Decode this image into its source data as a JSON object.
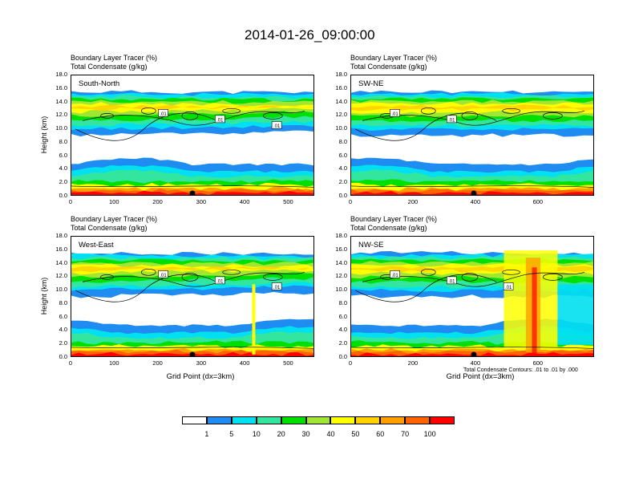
{
  "figure": {
    "title": "2014-01-26_09:00:00",
    "note": "Total Condensate Contours: .01 to .01 by .000"
  },
  "colorbar": {
    "colors": [
      "#ffffff",
      "#1e8cf0",
      "#00e0f0",
      "#32e6a0",
      "#00e000",
      "#a0e632",
      "#ffff00",
      "#ffd200",
      "#ffa000",
      "#ff6400",
      "#ff0000"
    ],
    "labels": [
      "1",
      "5",
      "10",
      "20",
      "30",
      "40",
      "50",
      "60",
      "70",
      "100"
    ]
  },
  "chart_data": [
    {
      "type": "heatmap",
      "region": "South-North",
      "title_line1": "Boundary Layer Tracer   (%)",
      "title_line2": "Total Condensate   (g/kg)",
      "ylabel": "Height (km)",
      "xlabel": "",
      "xlim": [
        0,
        560
      ],
      "ylim": [
        0,
        18
      ],
      "xticks": [
        "0",
        "100",
        "200",
        "300",
        "400",
        "500"
      ],
      "yticks": [
        "0.0",
        "2.0",
        "4.0",
        "6.0",
        "8.0",
        "10.0",
        "12.0",
        "14.0",
        "16.0",
        "18.0"
      ],
      "contour_labels": [
        ".01",
        ".01",
        ".01"
      ],
      "marker_x": 280
    },
    {
      "type": "heatmap",
      "region": "SW-NE",
      "title_line1": "Boundary Layer Tracer   (%)",
      "title_line2": "Total Condensate   (g/kg)",
      "ylabel": "",
      "xlabel": "",
      "xlim": [
        0,
        780
      ],
      "ylim": [
        0,
        18
      ],
      "xticks": [
        "0",
        "200",
        "400",
        "600"
      ],
      "yticks": [
        "0.0",
        "2.0",
        "4.0",
        "6.0",
        "8.0",
        "10.0",
        "12.0",
        "14.0",
        "16.0",
        "18.0"
      ],
      "contour_labels": [
        ".01",
        ".01"
      ],
      "marker_x": 395
    },
    {
      "type": "heatmap",
      "region": "West-East",
      "title_line1": "Boundary Layer Tracer   (%)",
      "title_line2": "Total Condensate   (g/kg)",
      "ylabel": "Height (km)",
      "xlabel": "Grid Point (dx=3km)",
      "xlim": [
        0,
        560
      ],
      "ylim": [
        0,
        18
      ],
      "xticks": [
        "0",
        "100",
        "200",
        "300",
        "400",
        "500"
      ],
      "yticks": [
        "0.0",
        "2.0",
        "4.0",
        "6.0",
        "8.0",
        "10.0",
        "12.0",
        "14.0",
        "16.0",
        "18.0"
      ],
      "contour_labels": [
        ".01",
        ".01",
        ".01"
      ],
      "marker_x": 280
    },
    {
      "type": "heatmap",
      "region": "NW-SE",
      "title_line1": "Boundary Layer Tracer   (%)",
      "title_line2": "Total Condensate   (g/kg)",
      "ylabel": "",
      "xlabel": "Grid Point (dx=3km)",
      "xlim": [
        0,
        780
      ],
      "ylim": [
        0,
        18
      ],
      "xticks": [
        "0",
        "200",
        "400",
        "600"
      ],
      "yticks": [
        "0.0",
        "2.0",
        "4.0",
        "6.0",
        "8.0",
        "10.0",
        "12.0",
        "14.0",
        "16.0",
        "18.0"
      ],
      "contour_labels": [
        ".01",
        ".01",
        ".01"
      ],
      "marker_x": 395
    }
  ]
}
